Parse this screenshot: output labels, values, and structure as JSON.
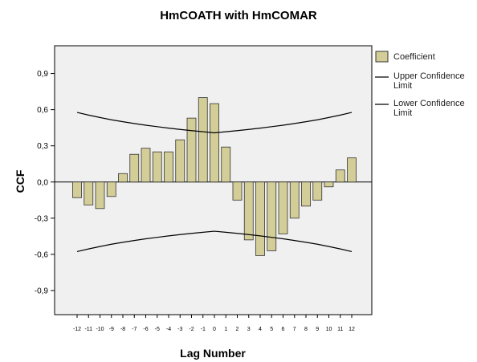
{
  "chart_data": {
    "type": "bar",
    "title": "HmCOATH with HmCOMAR",
    "x_label": "Lag Number",
    "y_label": "CCF",
    "categories": [
      "-12",
      "-11",
      "-10",
      "-9",
      "-8",
      "-7",
      "-6",
      "-5",
      "-4",
      "-3",
      "-2",
      "-1",
      "0",
      "1",
      "2",
      "3",
      "4",
      "5",
      "6",
      "7",
      "8",
      "9",
      "10",
      "11",
      "12"
    ],
    "series": [
      {
        "name": "Coefficient",
        "color": "#d3ce97",
        "kind": "bar",
        "values": [
          -0.13,
          -0.19,
          -0.22,
          -0.12,
          0.07,
          0.23,
          0.28,
          0.25,
          0.25,
          0.35,
          0.53,
          0.7,
          0.65,
          0.29,
          -0.15,
          -0.48,
          -0.61,
          -0.57,
          -0.43,
          -0.3,
          -0.2,
          -0.15,
          -0.04,
          0.1,
          0.2
        ]
      },
      {
        "name": "Upper Confidence Limit",
        "color": "#000000",
        "kind": "line",
        "values": [
          0.577,
          0.555,
          0.535,
          0.516,
          0.5,
          0.485,
          0.471,
          0.459,
          0.447,
          0.436,
          0.426,
          0.417,
          0.408,
          0.417,
          0.426,
          0.436,
          0.447,
          0.459,
          0.471,
          0.485,
          0.5,
          0.516,
          0.535,
          0.555,
          0.577
        ]
      },
      {
        "name": "Lower Confidence Limit",
        "color": "#000000",
        "kind": "line",
        "values": [
          -0.577,
          -0.555,
          -0.535,
          -0.516,
          -0.5,
          -0.485,
          -0.471,
          -0.459,
          -0.447,
          -0.436,
          -0.426,
          -0.417,
          -0.408,
          -0.417,
          -0.426,
          -0.436,
          -0.447,
          -0.459,
          -0.471,
          -0.485,
          -0.5,
          -0.516,
          -0.535,
          -0.555,
          -0.577
        ]
      }
    ],
    "ylim": [
      -1.1,
      1.13
    ],
    "yticks": [
      {
        "value": -0.9,
        "label": "-0,9"
      },
      {
        "value": -0.6,
        "label": "-0,6"
      },
      {
        "value": -0.3,
        "label": "-0,3"
      },
      {
        "value": 0,
        "label": "0,0"
      },
      {
        "value": 0.3,
        "label": "0,3"
      },
      {
        "value": 0.6,
        "label": "0,6"
      },
      {
        "value": 0.9,
        "label": "0,9"
      }
    ],
    "grid": false
  }
}
